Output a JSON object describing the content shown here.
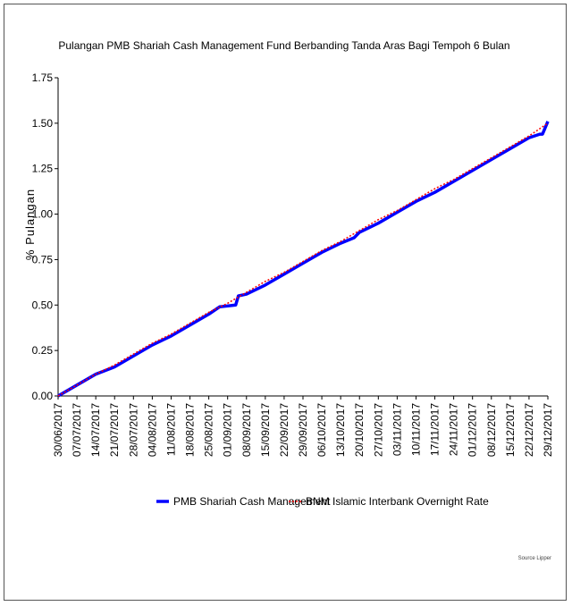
{
  "chart_data": {
    "type": "line",
    "title": "Pulangan PMB Shariah Cash Management Fund Berbanding Tanda Aras Bagi Tempoh 6 Bulan",
    "ylabel": "% Pulangan",
    "xlabel": "",
    "ylim": [
      0,
      1.75
    ],
    "yticks": [
      "0.00",
      "0.25",
      "0.50",
      "0.75",
      "1.00",
      "1.25",
      "1.50",
      "1.75"
    ],
    "x_date_start": "30/06/2017",
    "x_date_end": "29/12/2017",
    "xticks": [
      "30/06/2017",
      "07/07/2017",
      "14/07/2017",
      "21/07/2017",
      "28/07/2017",
      "04/08/2017",
      "11/08/2017",
      "18/08/2017",
      "25/08/2017",
      "01/09/2017",
      "08/09/2017",
      "15/09/2017",
      "22/09/2017",
      "29/09/2017",
      "06/10/2017",
      "13/10/2017",
      "20/10/2017",
      "27/10/2017",
      "03/11/2017",
      "10/11/2017",
      "17/11/2017",
      "24/11/2017",
      "01/12/2017",
      "08/12/2017",
      "15/12/2017",
      "22/12/2017",
      "29/12/2017"
    ],
    "grid": false,
    "legend_position": "bottom",
    "series": [
      {
        "name": "PMB Shariah Cash Management",
        "color": "#0000ff",
        "style": "solid",
        "points": [
          [
            "30/06/2017",
            0.0
          ],
          [
            "07/07/2017",
            0.06
          ],
          [
            "14/07/2017",
            0.12
          ],
          [
            "21/07/2017",
            0.16
          ],
          [
            "28/07/2017",
            0.22
          ],
          [
            "04/08/2017",
            0.28
          ],
          [
            "11/08/2017",
            0.33
          ],
          [
            "18/08/2017",
            0.39
          ],
          [
            "25/08/2017",
            0.45
          ],
          [
            "29/08/2017",
            0.49
          ],
          [
            "04/09/2017",
            0.5
          ],
          [
            "05/09/2017",
            0.55
          ],
          [
            "08/09/2017",
            0.56
          ],
          [
            "15/09/2017",
            0.61
          ],
          [
            "22/09/2017",
            0.67
          ],
          [
            "29/09/2017",
            0.73
          ],
          [
            "06/10/2017",
            0.79
          ],
          [
            "13/10/2017",
            0.84
          ],
          [
            "18/10/2017",
            0.87
          ],
          [
            "20/10/2017",
            0.9
          ],
          [
            "27/10/2017",
            0.95
          ],
          [
            "03/11/2017",
            1.01
          ],
          [
            "10/11/2017",
            1.07
          ],
          [
            "17/11/2017",
            1.12
          ],
          [
            "24/11/2017",
            1.18
          ],
          [
            "01/12/2017",
            1.24
          ],
          [
            "08/12/2017",
            1.3
          ],
          [
            "15/12/2017",
            1.36
          ],
          [
            "22/12/2017",
            1.42
          ],
          [
            "26/12/2017",
            1.44
          ],
          [
            "27/12/2017",
            1.44
          ],
          [
            "29/12/2017",
            1.51
          ]
        ]
      },
      {
        "name": "BNM Islamic Interbank Overnight Rate",
        "color": "#ff0000",
        "style": "dotted",
        "points": [
          [
            "30/06/2017",
            0.0
          ],
          [
            "07/07/2017",
            0.06
          ],
          [
            "14/07/2017",
            0.12
          ],
          [
            "21/07/2017",
            0.17
          ],
          [
            "28/07/2017",
            0.23
          ],
          [
            "04/08/2017",
            0.29
          ],
          [
            "11/08/2017",
            0.34
          ],
          [
            "18/08/2017",
            0.4
          ],
          [
            "25/08/2017",
            0.46
          ],
          [
            "01/09/2017",
            0.51
          ],
          [
            "08/09/2017",
            0.57
          ],
          [
            "15/09/2017",
            0.63
          ],
          [
            "22/09/2017",
            0.68
          ],
          [
            "29/09/2017",
            0.74
          ],
          [
            "06/10/2017",
            0.8
          ],
          [
            "13/10/2017",
            0.85
          ],
          [
            "20/10/2017",
            0.91
          ],
          [
            "27/10/2017",
            0.97
          ],
          [
            "03/11/2017",
            1.02
          ],
          [
            "10/11/2017",
            1.08
          ],
          [
            "17/11/2017",
            1.14
          ],
          [
            "24/11/2017",
            1.19
          ],
          [
            "01/12/2017",
            1.25
          ],
          [
            "08/12/2017",
            1.31
          ],
          [
            "15/12/2017",
            1.37
          ],
          [
            "22/12/2017",
            1.43
          ],
          [
            "29/12/2017",
            1.5
          ]
        ]
      }
    ],
    "source": "Source Lipper"
  }
}
